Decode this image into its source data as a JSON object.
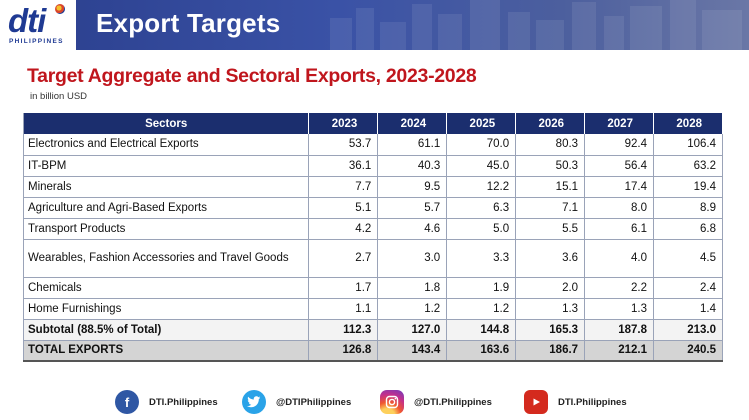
{
  "header": {
    "logo_text": "dti",
    "logo_subtext": "PHILIPPINES",
    "title": "Export Targets"
  },
  "title": "Target Aggregate and Sectoral Exports, 2023-2028",
  "subtitle": "in billion USD",
  "table": {
    "columns": [
      "Sectors",
      "2023",
      "2024",
      "2025",
      "2026",
      "2027",
      "2028"
    ],
    "rows": [
      {
        "sector": "Electronics and Electrical Exports",
        "values": [
          "53.7",
          "61.1",
          "70.0",
          "80.3",
          "92.4",
          "106.4"
        ]
      },
      {
        "sector": "IT-BPM",
        "values": [
          "36.1",
          "40.3",
          "45.0",
          "50.3",
          "56.4",
          "63.2"
        ]
      },
      {
        "sector": "Minerals",
        "values": [
          "7.7",
          "9.5",
          "12.2",
          "15.1",
          "17.4",
          "19.4"
        ]
      },
      {
        "sector": "Agriculture and Agri-Based Exports",
        "values": [
          "5.1",
          "5.7",
          "6.3",
          "7.1",
          "8.0",
          "8.9"
        ]
      },
      {
        "sector": "Transport Products",
        "values": [
          "4.2",
          "4.6",
          "5.0",
          "5.5",
          "6.1",
          "6.8"
        ]
      },
      {
        "sector": "Wearables, Fashion Accessories and Travel Goods",
        "values": [
          "2.7",
          "3.0",
          "3.3",
          "3.6",
          "4.0",
          "4.5"
        ]
      },
      {
        "sector": "Chemicals",
        "values": [
          "1.7",
          "1.8",
          "1.9",
          "2.0",
          "2.2",
          "2.4"
        ]
      },
      {
        "sector": "Home Furnishings",
        "values": [
          "1.1",
          "1.2",
          "1.2",
          "1.3",
          "1.3",
          "1.4"
        ]
      },
      {
        "sector": "Subtotal (88.5% of Total)",
        "values": [
          "112.3",
          "127.0",
          "144.8",
          "165.3",
          "187.8",
          "213.0"
        ]
      },
      {
        "sector": "TOTAL EXPORTS",
        "values": [
          "126.8",
          "143.4",
          "163.6",
          "186.7",
          "212.1",
          "240.5"
        ]
      }
    ]
  },
  "footer": {
    "facebook": {
      "icon": "facebook-icon",
      "label": "DTI.Philippines"
    },
    "twitter": {
      "icon": "twitter-icon",
      "label": "@DTIPhilippines"
    },
    "instagram": {
      "icon": "instagram-icon",
      "label": "@DTI.Philippines"
    },
    "youtube": {
      "icon": "youtube-icon",
      "label": "DTI.Philippines"
    }
  }
}
